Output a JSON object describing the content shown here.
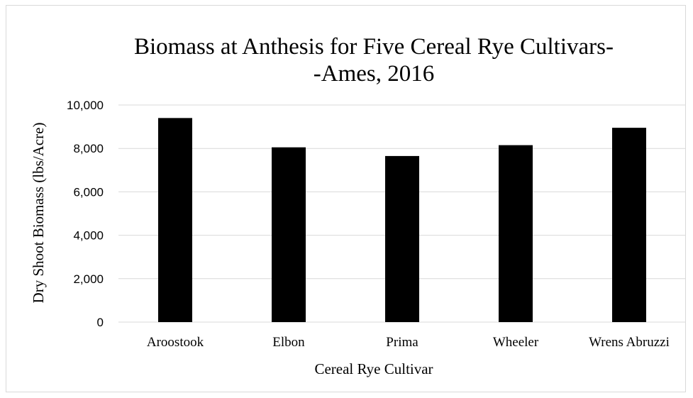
{
  "chart_data": {
    "type": "bar",
    "title_lines": [
      "Biomass at Anthesis for Five Cereal Rye Cultivars-",
      "-Ames, 2016"
    ],
    "xlabel": "Cereal Rye Cultivar",
    "ylabel": "Dry Shoot Biomass (lbs/Acre)",
    "categories": [
      "Aroostook",
      "Elbon",
      "Prima",
      "Wheeler",
      "Wrens Abruzzi"
    ],
    "values": [
      9400,
      8050,
      7650,
      8150,
      8950
    ],
    "ylim": [
      0,
      10000
    ],
    "yticks": [
      0,
      2000,
      4000,
      6000,
      8000,
      10000
    ],
    "ytick_labels": [
      "0",
      "2,000",
      "4,000",
      "6,000",
      "8,000",
      "10,000"
    ],
    "grid": true,
    "bar_color": "#000000",
    "legend": "none"
  }
}
